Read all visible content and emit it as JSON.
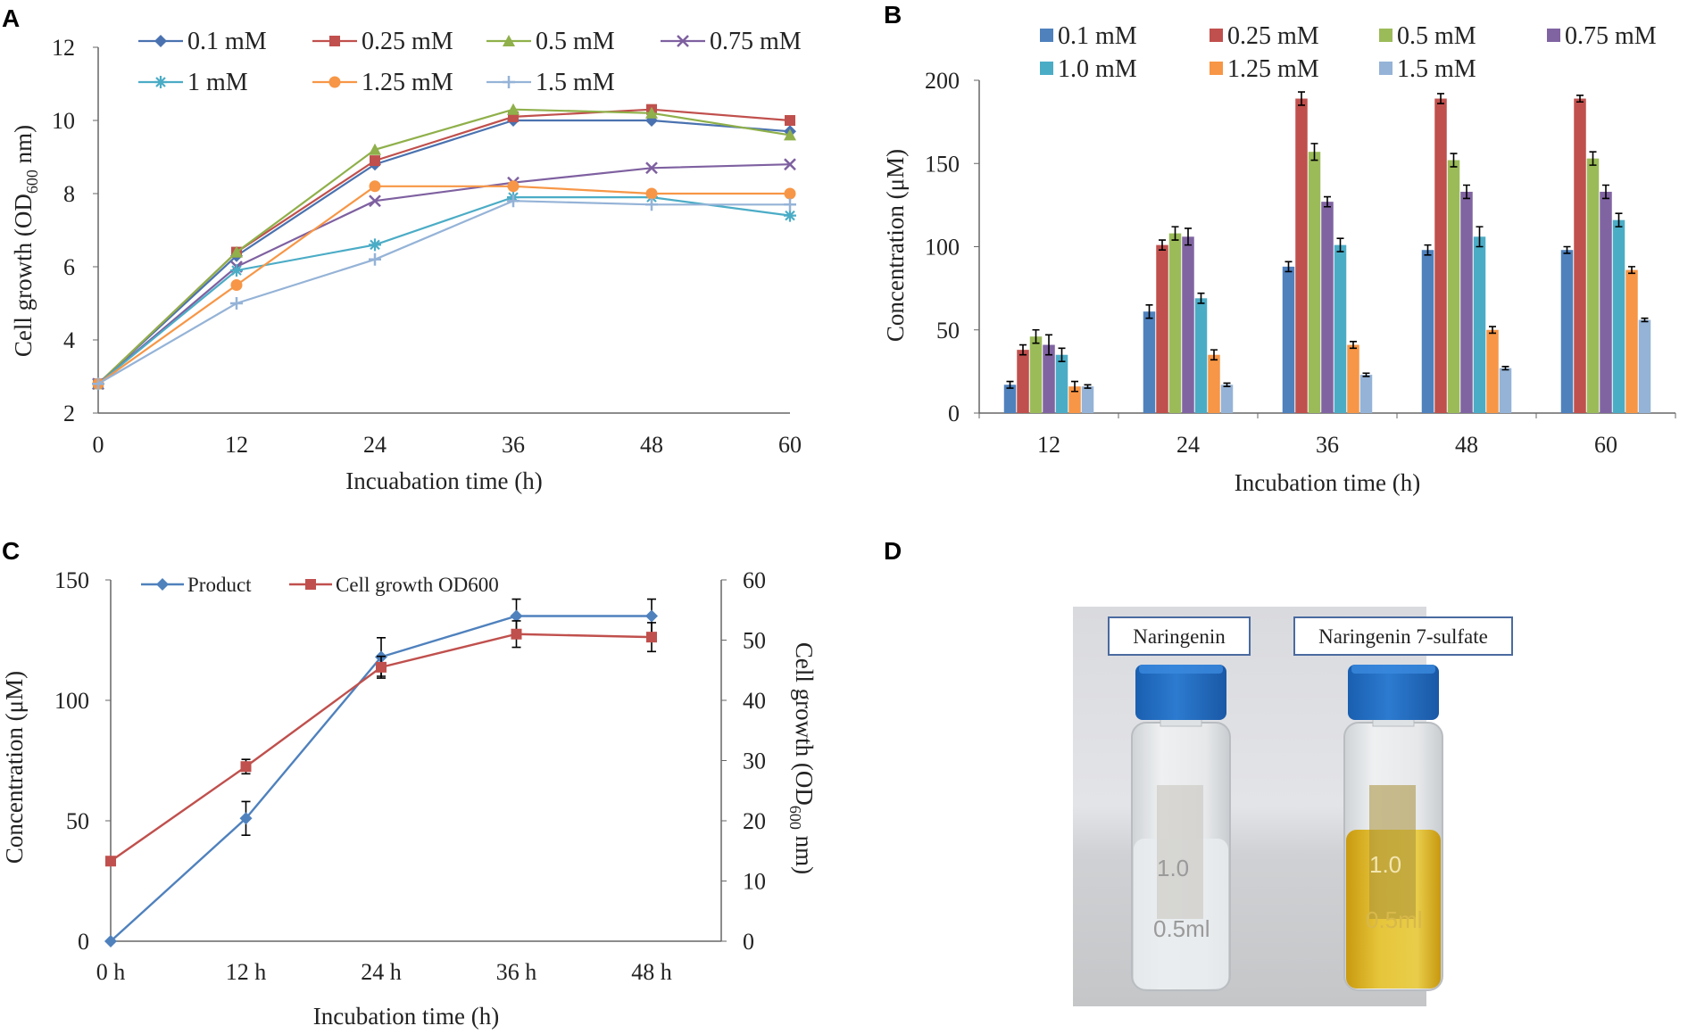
{
  "panels": {
    "a": "A",
    "b": "B",
    "c": "C",
    "d": "D"
  },
  "chart_data": [
    {
      "id": "A",
      "type": "line",
      "x": [
        0,
        12,
        24,
        36,
        48,
        60
      ],
      "xlabel": "Incuabation time (h)",
      "ylabel_pre": "Cell growth (OD",
      "ylabel_sub": "600",
      "ylabel_post": " nm)",
      "ylim": [
        2,
        12
      ],
      "yticks": [
        2,
        4,
        6,
        8,
        10,
        12
      ],
      "xticks": [
        "0",
        "12",
        "24",
        "36",
        "48",
        "60"
      ],
      "series": [
        {
          "name": "0.1 mM",
          "color": "#4a72b0",
          "marker": "diamond",
          "values": [
            2.8,
            6.3,
            8.8,
            10.0,
            10.0,
            9.7
          ]
        },
        {
          "name": "0.25 mM",
          "color": "#c0504d",
          "marker": "square",
          "values": [
            2.8,
            6.4,
            8.9,
            10.1,
            10.3,
            10.0
          ]
        },
        {
          "name": "0.5 mM",
          "color": "#8fb04a",
          "marker": "triangle",
          "values": [
            2.8,
            6.4,
            9.2,
            10.3,
            10.2,
            9.6
          ]
        },
        {
          "name": "0.75 mM",
          "color": "#7e60a0",
          "marker": "x",
          "values": [
            2.8,
            6.0,
            7.8,
            8.3,
            8.7,
            8.8
          ]
        },
        {
          "name": "1 mM",
          "color": "#4bacc6",
          "marker": "star",
          "values": [
            2.8,
            5.9,
            6.6,
            7.9,
            7.9,
            7.4
          ]
        },
        {
          "name": "1.25 mM",
          "color": "#f79646",
          "marker": "circle",
          "values": [
            2.8,
            5.5,
            8.2,
            8.2,
            8.0,
            8.0
          ]
        },
        {
          "name": "1.5 mM",
          "color": "#95b3d7",
          "marker": "plus",
          "values": [
            2.8,
            5.0,
            6.2,
            7.8,
            7.7,
            7.7
          ]
        }
      ]
    },
    {
      "id": "B",
      "type": "bar",
      "categories": [
        "12",
        "24",
        "36",
        "48",
        "60"
      ],
      "xlabel": "Incubation time (h)",
      "ylabel": "Concentration (μM)",
      "ylim": [
        0,
        200
      ],
      "yticks": [
        0,
        50,
        100,
        150,
        200
      ],
      "series": [
        {
          "name": "0.1 mM",
          "color": "#4f81bd",
          "values": [
            17,
            61,
            88,
            98,
            98
          ],
          "errors": [
            2,
            4,
            3,
            3,
            2
          ]
        },
        {
          "name": "0.25 mM",
          "color": "#c0504d",
          "values": [
            38,
            101,
            189,
            189,
            189
          ],
          "errors": [
            3,
            3,
            4,
            3,
            2
          ]
        },
        {
          "name": "0.5 mM",
          "color": "#9bbb59",
          "values": [
            46,
            108,
            157,
            152,
            153
          ],
          "errors": [
            4,
            4,
            5,
            4,
            4
          ]
        },
        {
          "name": "0.75 mM",
          "color": "#8064a2",
          "values": [
            41,
            106,
            127,
            133,
            133
          ],
          "errors": [
            6,
            5,
            3,
            4,
            4
          ]
        },
        {
          "name": "1.0 mM",
          "color": "#4bacc6",
          "values": [
            35,
            69,
            101,
            106,
            116
          ],
          "errors": [
            4,
            3,
            4,
            6,
            4
          ]
        },
        {
          "name": "1.25 mM",
          "color": "#f79646",
          "values": [
            16,
            35,
            41,
            50,
            86
          ],
          "errors": [
            3,
            3,
            2,
            2,
            2
          ]
        },
        {
          "name": "1.5 mM",
          "color": "#95b3d7",
          "values": [
            16,
            17,
            23,
            27,
            56
          ],
          "errors": [
            1,
            1,
            1,
            1,
            1
          ]
        }
      ]
    },
    {
      "id": "C",
      "type": "line",
      "categories": [
        "0 h",
        "12 h",
        "24 h",
        "36 h",
        "48 h"
      ],
      "xlabel": "Incubation time (h)",
      "ylabel_left": "Concentration (μM)",
      "ylabel_right_pre": "Cell growth (OD",
      "ylabel_right_sub": "600",
      "ylabel_right_post": " nm)",
      "ylim_left": [
        0,
        150
      ],
      "yticks_left": [
        0,
        50,
        100,
        150
      ],
      "ylim_right": [
        0,
        60
      ],
      "yticks_right": [
        0,
        10,
        20,
        30,
        40,
        50,
        60
      ],
      "series": [
        {
          "name": "Product",
          "color": "#4f81bd",
          "marker": "diamond",
          "axis": "left",
          "values": [
            0,
            51,
            118,
            135,
            135
          ],
          "errors": [
            0,
            7,
            8,
            7,
            7
          ]
        },
        {
          "name": "Cell growth OD600",
          "color": "#c0504d",
          "marker": "square",
          "axis": "right",
          "values": [
            13.3,
            29,
            45.5,
            51,
            50.5
          ],
          "errors": [
            0,
            1.2,
            1.8,
            2.2,
            2.4
          ]
        }
      ]
    }
  ],
  "photo": {
    "label_left": "Naringenin",
    "label_right": "Naringenin  7-sulfate",
    "vial_mark_top": "1.0",
    "vial_mark_bottom": "0.5ml"
  }
}
